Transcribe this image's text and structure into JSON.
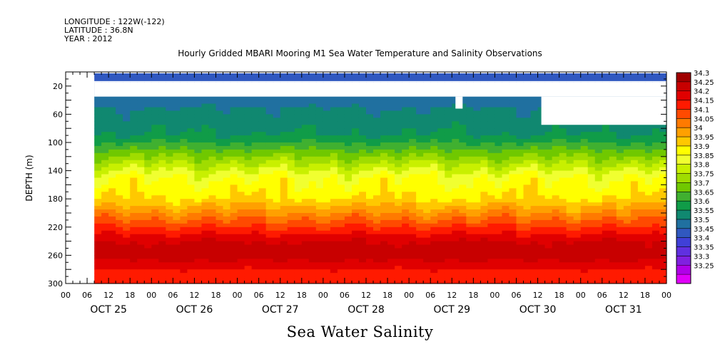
{
  "header": {
    "longitude": "LONGITUDE : 122W(-122)",
    "latitude": "LATITUDE : 36.8N",
    "year": "YEAR : 2012"
  },
  "footer": {
    "title": "Sea Water Salinity"
  },
  "chart_data": {
    "type": "heatmap",
    "title": "Hourly Gridded MBARI Mooring M1 Sea Water Temperature and Salinity Observations",
    "subtitle": "Sea Water Salinity",
    "ylabel": "DEPTH (m)",
    "ylim": [
      300,
      0
    ],
    "y_ticks": [
      20,
      60,
      100,
      140,
      180,
      220,
      260,
      300
    ],
    "x_range_hours": [
      0,
      168
    ],
    "x_hour_labels": [
      "00",
      "06",
      "12",
      "18",
      "00",
      "06",
      "12",
      "18",
      "00",
      "06",
      "12",
      "18",
      "00",
      "06",
      "12",
      "18",
      "00",
      "06",
      "12",
      "18",
      "00",
      "06",
      "12",
      "18",
      "00",
      "06",
      "12",
      "18",
      "00"
    ],
    "days": [
      "OCT 25",
      "OCT 26",
      "OCT 27",
      "OCT 28",
      "OCT 29",
      "OCT 30",
      "OCT 31"
    ],
    "data_start_hour": 8,
    "colorbar": {
      "levels": [
        "34.3",
        "34.25",
        "34.2",
        "34.15",
        "34.1",
        "34.05",
        "34",
        "33.95",
        "33.9",
        "33.85",
        "33.8",
        "33.75",
        "33.7",
        "33.65",
        "33.6",
        "33.55",
        "33.5",
        "33.45",
        "33.4",
        "33.35",
        "33.3",
        "33.25"
      ],
      "colors": [
        "#a00000",
        "#c80000",
        "#e00000",
        "#ff1a00",
        "#ff4a00",
        "#ff7a00",
        "#ffa000",
        "#ffc800",
        "#ffff00",
        "#f0ff30",
        "#c8f000",
        "#a0dc00",
        "#70c800",
        "#40b030",
        "#109c48",
        "#108870",
        "#2070a0",
        "#3058c0",
        "#4040d8",
        "#6030e0",
        "#8020e0",
        "#b000e8",
        "#e000f8"
      ]
    },
    "profile": [
      {
        "depth": 10,
        "value": 33.45
      },
      {
        "depth": 50,
        "value": 33.55
      },
      {
        "depth": 90,
        "value": 33.6
      },
      {
        "depth": 110,
        "value": 33.7
      },
      {
        "depth": 130,
        "value": 33.8
      },
      {
        "depth": 150,
        "value": 33.9
      },
      {
        "depth": 180,
        "value": 33.95
      },
      {
        "depth": 200,
        "value": 34.05
      },
      {
        "depth": 220,
        "value": 34.15
      },
      {
        "depth": 240,
        "value": 34.25
      },
      {
        "depth": 260,
        "value": 34.28
      },
      {
        "depth": 280,
        "value": 34.2
      },
      {
        "depth": 300,
        "value": 34.15
      }
    ],
    "missing": [
      {
        "from_hour": 0,
        "to_hour": 8,
        "depth_top": 0,
        "depth_bottom": 300
      },
      {
        "from_hour": 8,
        "to_hour": 168,
        "depth_top": 15,
        "depth_bottom": 35
      },
      {
        "from_hour": 133,
        "to_hour": 168,
        "depth_top": 35,
        "depth_bottom": 75
      },
      {
        "from_hour": 109,
        "to_hour": 111,
        "depth_top": 35,
        "depth_bottom": 52
      }
    ]
  }
}
